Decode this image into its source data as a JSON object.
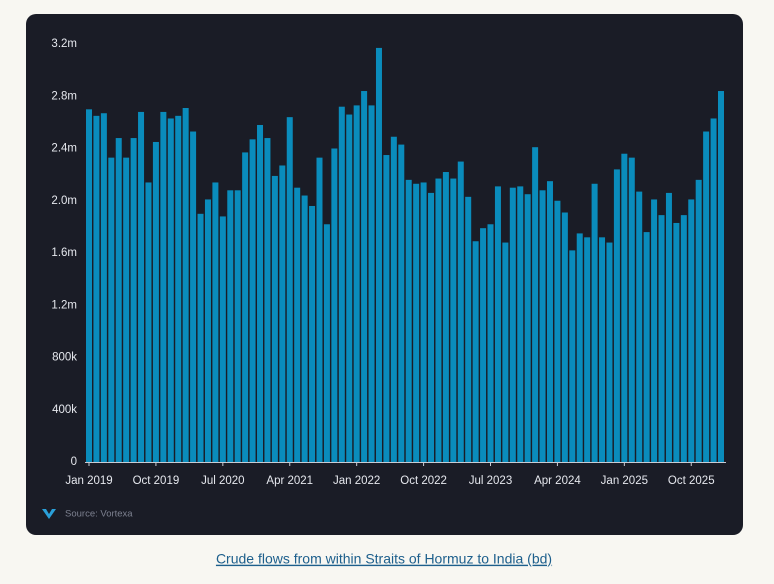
{
  "chart_data": {
    "type": "bar",
    "caption": "Crude flows from within Straits of Hormuz to India (bd)",
    "source": "Source: Vortexa",
    "color": "#0a8cbc",
    "categories": [
      "Jan 2019",
      null,
      null,
      null,
      null,
      null,
      null,
      null,
      null,
      "Oct 2019",
      null,
      null,
      null,
      null,
      null,
      null,
      null,
      null,
      "Jul 2020",
      null,
      null,
      null,
      null,
      null,
      null,
      null,
      null,
      "Apr 2021",
      null,
      null,
      null,
      null,
      null,
      null,
      null,
      null,
      "Jan 2022",
      null,
      null,
      null,
      null,
      null,
      null,
      null,
      null,
      "Oct 2022",
      null,
      null,
      null,
      null,
      null,
      null,
      null,
      null,
      "Jul 2023",
      null,
      null,
      null,
      null,
      null,
      null,
      null,
      null,
      "Apr 2024",
      null,
      null,
      null,
      null,
      null,
      null,
      null,
      null,
      "Jan 2025",
      null,
      null,
      null,
      null,
      null,
      null,
      null,
      null,
      "Oct 2025",
      null,
      null,
      null,
      null
    ],
    "values": [
      2700000,
      2650000,
      2670000,
      2330000,
      2480000,
      2330000,
      2480000,
      2680000,
      2140000,
      2450000,
      2680000,
      2630000,
      2650000,
      2710000,
      2530000,
      1900000,
      2010000,
      2140000,
      1880000,
      2080000,
      2080000,
      2370000,
      2470000,
      2580000,
      2480000,
      2190000,
      2270000,
      2640000,
      2100000,
      2040000,
      1960000,
      2330000,
      1820000,
      2400000,
      2720000,
      2660000,
      2730000,
      2840000,
      2730000,
      3170000,
      2350000,
      2490000,
      2430000,
      2160000,
      2130000,
      2140000,
      2060000,
      2170000,
      2220000,
      2170000,
      2300000,
      2030000,
      1690000,
      1790000,
      1820000,
      2110000,
      1680000,
      2100000,
      2110000,
      2050000,
      2410000,
      2080000,
      2150000,
      2000000,
      1910000,
      1620000,
      1750000,
      1720000,
      2130000,
      1720000,
      1680000,
      2240000,
      2360000,
      2330000,
      2070000,
      1760000,
      2010000,
      1890000,
      2060000,
      1830000,
      1890000,
      2010000,
      2160000,
      2530000,
      2630000,
      2840000
    ],
    "ylim": [
      0,
      3200000
    ],
    "yticks": [
      0,
      {
        "value": 400000,
        "label": "400k"
      },
      {
        "value": 800000,
        "label": "800k"
      },
      {
        "value": 1200000,
        "label": "1.2m"
      },
      {
        "value": 1600000,
        "label": "1.6m"
      },
      {
        "value": 2000000,
        "label": "2.0m"
      },
      {
        "value": 2400000,
        "label": "2.4m"
      },
      {
        "value": 2800000,
        "label": "2.8m"
      },
      {
        "value": 3200000,
        "label": "3.2m"
      }
    ]
  }
}
